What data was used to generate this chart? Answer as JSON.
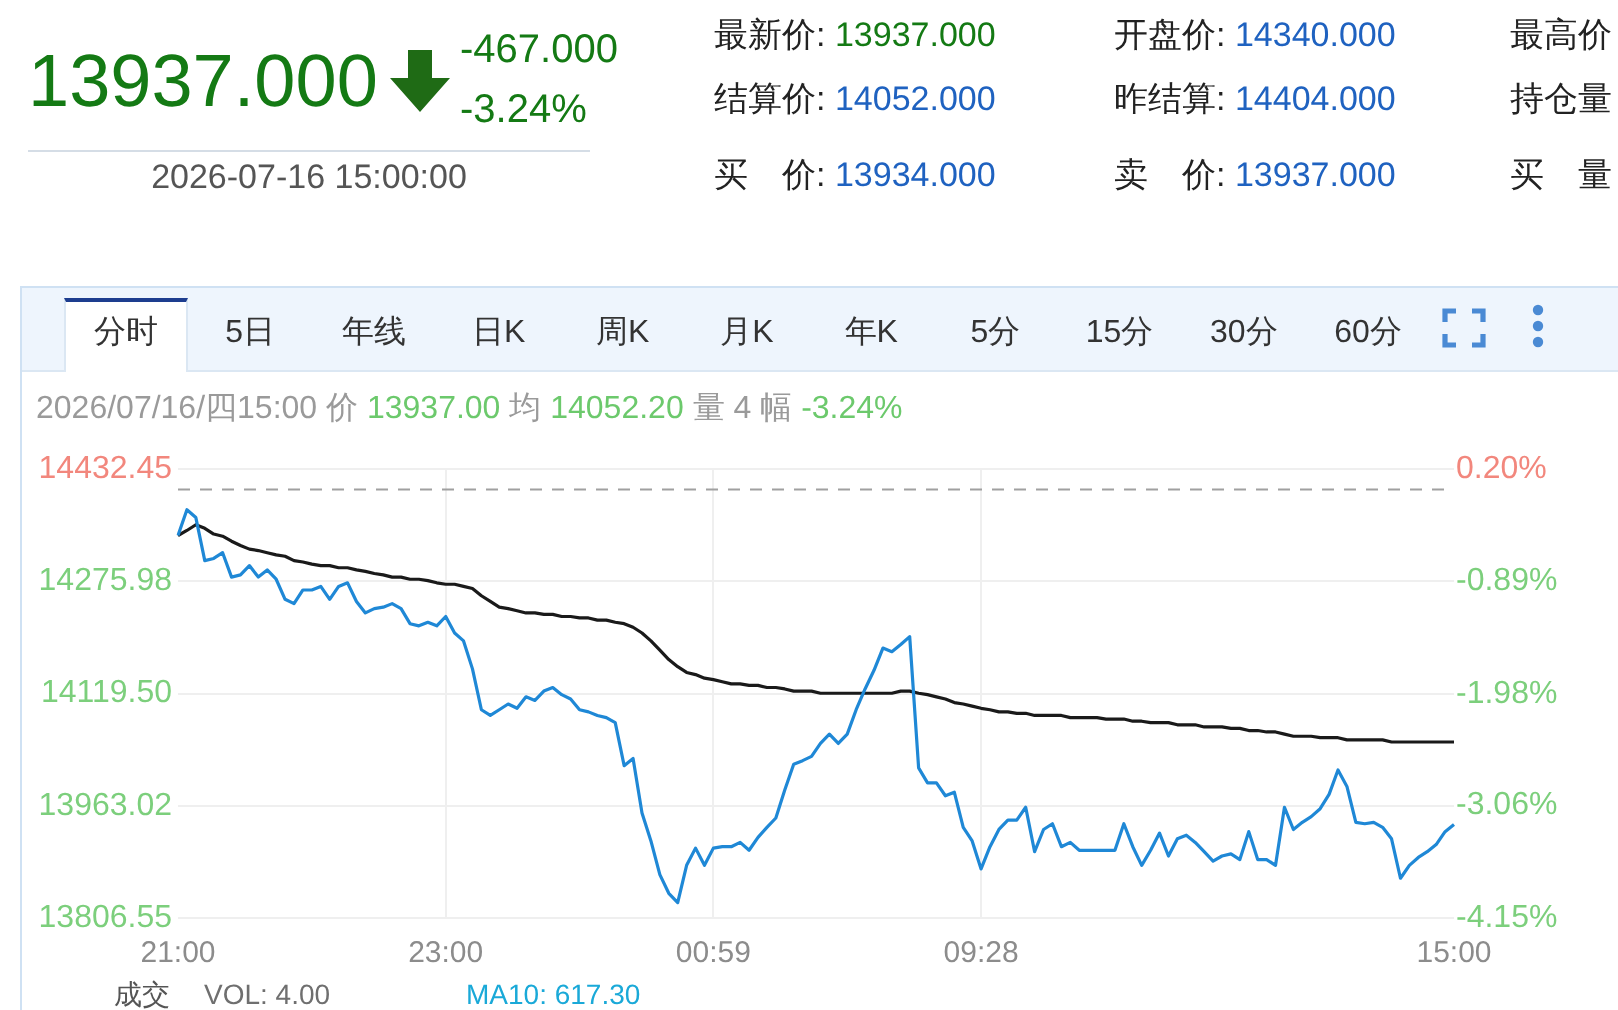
{
  "chart_data": {
    "type": "line",
    "subtitle": "2026/07/16/四15:00 价 13937.00 均 14052.20 量 4 幅 -3.24%",
    "annotations": [
      "13937.000",
      "-467.000",
      "-3.24%",
      "2026-07-16 15:00:00",
      "最新价: 13937.000",
      "开盘价: 14340.000",
      "最高价",
      "结算价: 14052.000",
      "昨结算: 14404.000",
      "持仓量",
      "买　价: 13934.000",
      "卖　价: 13937.000",
      "买　量",
      "分时",
      "5日",
      "年线",
      "日K",
      "周K",
      "月K",
      "年K",
      "5分",
      "15分",
      "30分",
      "60分",
      "成交",
      "VOL: 4.00",
      "MA10: 617.30"
    ],
    "categories": [
      "21:00",
      null,
      null,
      null,
      null,
      null,
      null,
      null,
      null,
      null,
      null,
      null,
      null,
      null,
      null,
      null,
      null,
      null,
      null,
      null,
      null,
      null,
      null,
      null,
      null,
      null,
      null,
      null,
      null,
      null,
      "23:00",
      null,
      null,
      null,
      null,
      null,
      null,
      null,
      null,
      null,
      null,
      null,
      null,
      null,
      null,
      null,
      null,
      null,
      null,
      null,
      null,
      null,
      null,
      null,
      null,
      null,
      null,
      null,
      null,
      null,
      "00:59",
      null,
      null,
      null,
      null,
      null,
      null,
      null,
      null,
      null,
      null,
      null,
      null,
      null,
      null,
      null,
      null,
      null,
      null,
      null,
      null,
      null,
      null,
      null,
      null,
      null,
      null,
      null,
      null,
      null,
      "09:28",
      null,
      null,
      null,
      null,
      null,
      null,
      null,
      null,
      null,
      null,
      null,
      null,
      null,
      null,
      null,
      null,
      null,
      null,
      null,
      null,
      null,
      null,
      null,
      null,
      null,
      null,
      null,
      null,
      null,
      null,
      null,
      null,
      null,
      null,
      null,
      null,
      null,
      null,
      null,
      null,
      null,
      null,
      null,
      null,
      null,
      null,
      null,
      null,
      null,
      null,
      null,
      null,
      "15:00"
    ],
    "series": [
      {
        "color": "#1f88d6",
        "values": [
          14340,
          14376,
          14365,
          14305,
          14308,
          14316,
          14282,
          14285,
          14298,
          14282,
          14292,
          14279,
          14251,
          14245,
          14264,
          14264,
          14269,
          14251,
          14269,
          14274,
          14248,
          14232,
          14238,
          14240,
          14245,
          14238,
          14217,
          14214,
          14219,
          14214,
          14227,
          14204,
          14193,
          14154,
          14097,
          14089,
          14097,
          14105,
          14099,
          14115,
          14110,
          14123,
          14128,
          14118,
          14112,
          14097,
          14094,
          14089,
          14086,
          14079,
          14019,
          14029,
          13953,
          13914,
          13867,
          13841,
          13828,
          13880,
          13904,
          13880,
          13904,
          13906,
          13906,
          13912,
          13901,
          13919,
          13933,
          13946,
          13985,
          14021,
          14026,
          14032,
          14050,
          14063,
          14050,
          14063,
          14097,
          14126,
          14152,
          14183,
          14178,
          14188,
          14199,
          14016,
          13995,
          13995,
          13977,
          13982,
          13933,
          13914,
          13875,
          13906,
          13930,
          13943,
          13943,
          13961,
          13899,
          13930,
          13938,
          13906,
          13912,
          13901,
          13901,
          13901,
          13901,
          13901,
          13938,
          13906,
          13880,
          13901,
          13925,
          13893,
          13917,
          13922,
          13912,
          13899,
          13886,
          13893,
          13896,
          13888,
          13927,
          13888,
          13888,
          13880,
          13961,
          13930,
          13940,
          13948,
          13959,
          13979,
          14013,
          13990,
          13940,
          13938,
          13940,
          13933,
          13917,
          13862,
          13880,
          13891,
          13899,
          13909,
          13927,
          13937
        ]
      },
      {
        "color": "#1a1a1a",
        "values": [
          14340,
          14347,
          14355,
          14350,
          14342,
          14339,
          14332,
          14326,
          14321,
          14319,
          14316,
          14313,
          14311,
          14305,
          14303,
          14300,
          14298,
          14298,
          14295,
          14295,
          14292,
          14290,
          14287,
          14285,
          14282,
          14282,
          14279,
          14279,
          14277,
          14274,
          14272,
          14272,
          14269,
          14266,
          14256,
          14248,
          14240,
          14238,
          14235,
          14232,
          14232,
          14230,
          14230,
          14227,
          14227,
          14225,
          14225,
          14222,
          14222,
          14219,
          14217,
          14212,
          14204,
          14193,
          14180,
          14167,
          14157,
          14149,
          14146,
          14141,
          14139,
          14136,
          14133,
          14133,
          14131,
          14131,
          14128,
          14128,
          14126,
          14123,
          14123,
          14123,
          14120,
          14120,
          14120,
          14120,
          14120,
          14120,
          14120,
          14120,
          14120,
          14123,
          14123,
          14120,
          14118,
          14115,
          14112,
          14107,
          14105,
          14102,
          14099,
          14097,
          14094,
          14094,
          14092,
          14092,
          14089,
          14089,
          14089,
          14089,
          14086,
          14086,
          14086,
          14086,
          14084,
          14084,
          14084,
          14081,
          14081,
          14079,
          14079,
          14079,
          14076,
          14076,
          14076,
          14073,
          14073,
          14073,
          14071,
          14071,
          14068,
          14068,
          14066,
          14066,
          14063,
          14060,
          14060,
          14060,
          14058,
          14058,
          14058,
          14055,
          14055,
          14055,
          14055,
          14055,
          14052,
          14052,
          14052,
          14052,
          14052,
          14052,
          14052,
          14052
        ]
      }
    ],
    "ylim": [
      13806.55,
      14432.45
    ],
    "yticks": [
      13806.55,
      13963.02,
      {
        "value": 14119.5,
        "label": "14119.50"
      },
      14275.98,
      14432.45
    ],
    "y2lim": [
      -4.15,
      0.2
    ],
    "y2ticks": [
      {
        "value": -4.15,
        "label": "-4.15%"
      },
      {
        "value": -3.06,
        "label": "-3.06%"
      },
      {
        "value": -1.98,
        "label": "-1.98%"
      },
      {
        "value": -0.89,
        "label": "-0.89%"
      },
      {
        "value": 0.2,
        "label": "0.20%"
      }
    ],
    "ref_lines": [
      {
        "axis": "y",
        "value": 14404,
        "color": "#a0a0a0",
        "line_style": "dashed"
      }
    ],
    "grid": true
  }
}
